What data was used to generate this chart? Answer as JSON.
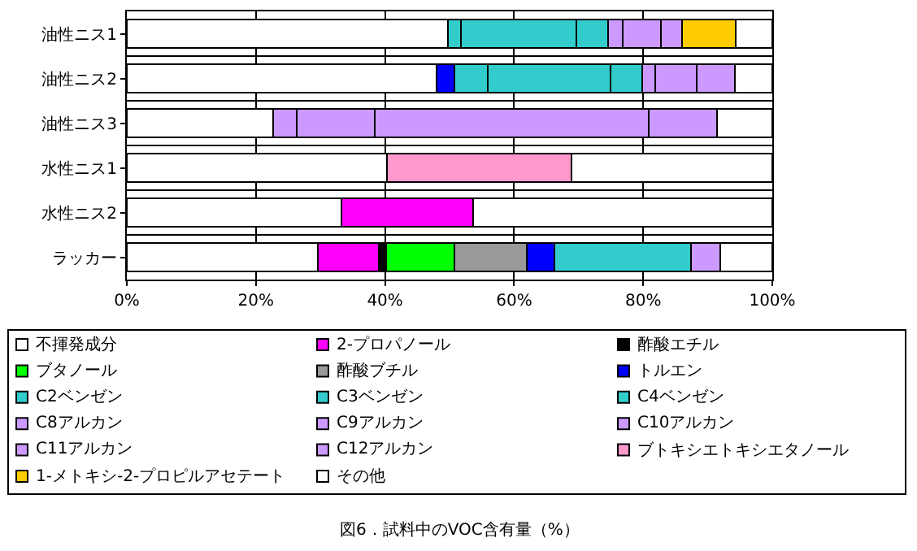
{
  "chart_data": {
    "type": "bar",
    "orientation": "horizontal",
    "stacked": true,
    "title": "図6．試料中のVOC含有量（%）",
    "categories": [
      "油性ニス1",
      "油性ニス2",
      "油性ニス3",
      "水性ニス1",
      "水性ニス2",
      "ラッカー"
    ],
    "xlim": [
      0,
      100
    ],
    "xticks": [
      {
        "value": 0,
        "label": "0%"
      },
      {
        "value": 20,
        "label": "20%"
      },
      {
        "value": 40,
        "label": "40%"
      },
      {
        "value": 60,
        "label": "60%"
      },
      {
        "value": 80,
        "label": "80%"
      },
      {
        "value": 100,
        "label": "100%"
      }
    ],
    "grid": true,
    "legend": "bottom",
    "series": [
      {
        "name": "不揮発成分",
        "color": "#ffffff",
        "values": [
          49.7,
          48.0,
          22.7,
          40.3,
          33.2,
          29.6
        ]
      },
      {
        "name": "2-プロパノール",
        "color": "#ff00ff",
        "values": [
          null,
          null,
          null,
          null,
          20.4,
          9.4
        ]
      },
      {
        "name": "酢酸エチル",
        "color": "#000000",
        "values": [
          null,
          null,
          null,
          null,
          null,
          1.2
        ]
      },
      {
        "name": "ブタノール",
        "color": "#00ff00",
        "values": [
          null,
          null,
          null,
          null,
          null,
          10.6
        ]
      },
      {
        "name": "酢酸ブチル",
        "color": "#999999",
        "values": [
          null,
          null,
          null,
          null,
          null,
          11.2
        ]
      },
      {
        "name": "トルエン",
        "color": "#0000ff",
        "values": [
          null,
          2.8,
          null,
          null,
          null,
          4.2
        ]
      },
      {
        "name": "C2ベンゼン",
        "color": "#33cccc",
        "values": [
          2.0,
          5.1,
          null,
          null,
          null,
          21.2
        ]
      },
      {
        "name": "C3ベンゼン",
        "color": "#33cccc",
        "values": [
          17.9,
          19.0,
          null,
          null,
          null,
          null
        ]
      },
      {
        "name": "C4ベンゼン",
        "color": "#33cccc",
        "values": [
          4.9,
          5.0,
          null,
          null,
          null,
          null
        ]
      },
      {
        "name": "C8アルカン",
        "color": "#cc99ff",
        "values": [
          null,
          null,
          null,
          null,
          null,
          4.5
        ]
      },
      {
        "name": "C9アルカン",
        "color": "#cc99ff",
        "values": [
          2.3,
          2.0,
          3.6,
          null,
          null,
          null
        ]
      },
      {
        "name": "C10アルカン",
        "color": "#cc99ff",
        "values": [
          5.9,
          6.4,
          12.1,
          null,
          null,
          null
        ]
      },
      {
        "name": "C11アルカン",
        "color": "#cc99ff",
        "values": [
          3.3,
          5.9,
          42.5,
          null,
          null,
          null
        ]
      },
      {
        "name": "C12アルカン",
        "color": "#cc99ff",
        "values": [
          null,
          null,
          10.5,
          null,
          null,
          null
        ]
      },
      {
        "name": "ブトキシエトキシエタノール",
        "color": "#ff99cc",
        "values": [
          null,
          null,
          null,
          28.6,
          null,
          null
        ]
      },
      {
        "name": "1-メトキシ-2-プロピルアセテート",
        "color": "#ffcc00",
        "values": [
          8.3,
          null,
          null,
          null,
          null,
          null
        ]
      },
      {
        "name": "その他",
        "color": "#ffffff",
        "values": [
          5.7,
          5.8,
          8.6,
          31.1,
          46.4,
          8.1
        ]
      }
    ]
  }
}
